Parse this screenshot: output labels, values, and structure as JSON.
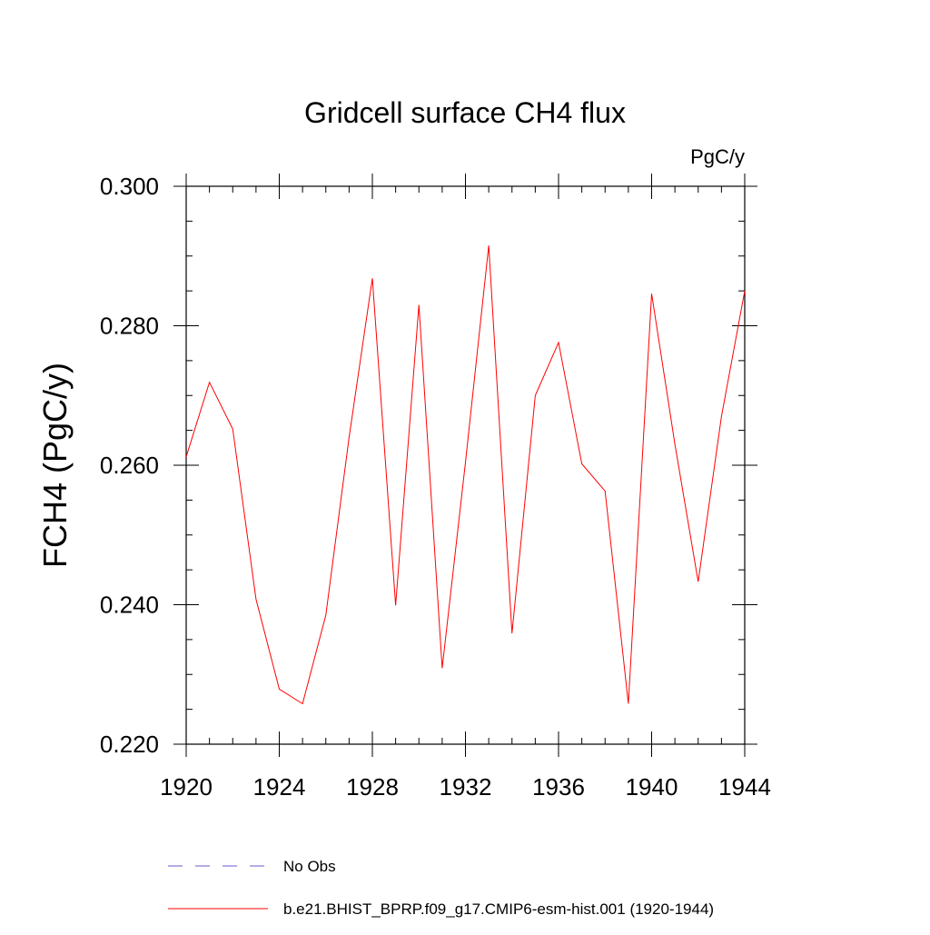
{
  "chart_data": {
    "type": "line",
    "title": "Gridcell surface CH4 flux",
    "units_label": "PgC/y",
    "xlabel": "",
    "ylabel": "FCH4  (PgC/y)",
    "xlim": [
      1920,
      1944
    ],
    "ylim": [
      0.22,
      0.3
    ],
    "x_ticks": [
      1920,
      1924,
      1928,
      1932,
      1936,
      1940,
      1944
    ],
    "x_tick_labels": [
      "1920",
      "1924",
      "1928",
      "1932",
      "1936",
      "1940",
      "1944"
    ],
    "x_minor_step": 1,
    "y_ticks": [
      0.22,
      0.24,
      0.26,
      0.28,
      0.3
    ],
    "y_tick_labels": [
      "0.220",
      "0.240",
      "0.260",
      "0.280",
      "0.300"
    ],
    "y_minor_step": 0.005,
    "grid": false,
    "series": [
      {
        "name": "b.e21.BHIST_BPRP.f09_g17.CMIP6-esm-hist.001 (1920-1944)",
        "color": "#ff0000",
        "style": "solid",
        "x": [
          1920,
          1921,
          1922,
          1923,
          1924,
          1925,
          1926,
          1927,
          1928,
          1929,
          1930,
          1931,
          1932,
          1933,
          1934,
          1935,
          1936,
          1937,
          1938,
          1939,
          1940,
          1941,
          1942,
          1943,
          1944
        ],
        "values": [
          0.2612,
          0.2719,
          0.2652,
          0.2408,
          0.2279,
          0.2258,
          0.2385,
          0.264,
          0.2868,
          0.2399,
          0.283,
          0.2309,
          0.2604,
          0.2915,
          0.2359,
          0.27,
          0.2776,
          0.2602,
          0.2563,
          0.2258,
          0.2846,
          0.263,
          0.2433,
          0.267,
          0.285
        ]
      }
    ],
    "legend": [
      {
        "label": "No Obs",
        "color": "#6a5acd",
        "style": "dashed"
      },
      {
        "label": "b.e21.BHIST_BPRP.f09_g17.CMIP6-esm-hist.001 (1920-1944)",
        "color": "#ff0000",
        "style": "solid"
      }
    ],
    "legend_position": "bottom"
  }
}
